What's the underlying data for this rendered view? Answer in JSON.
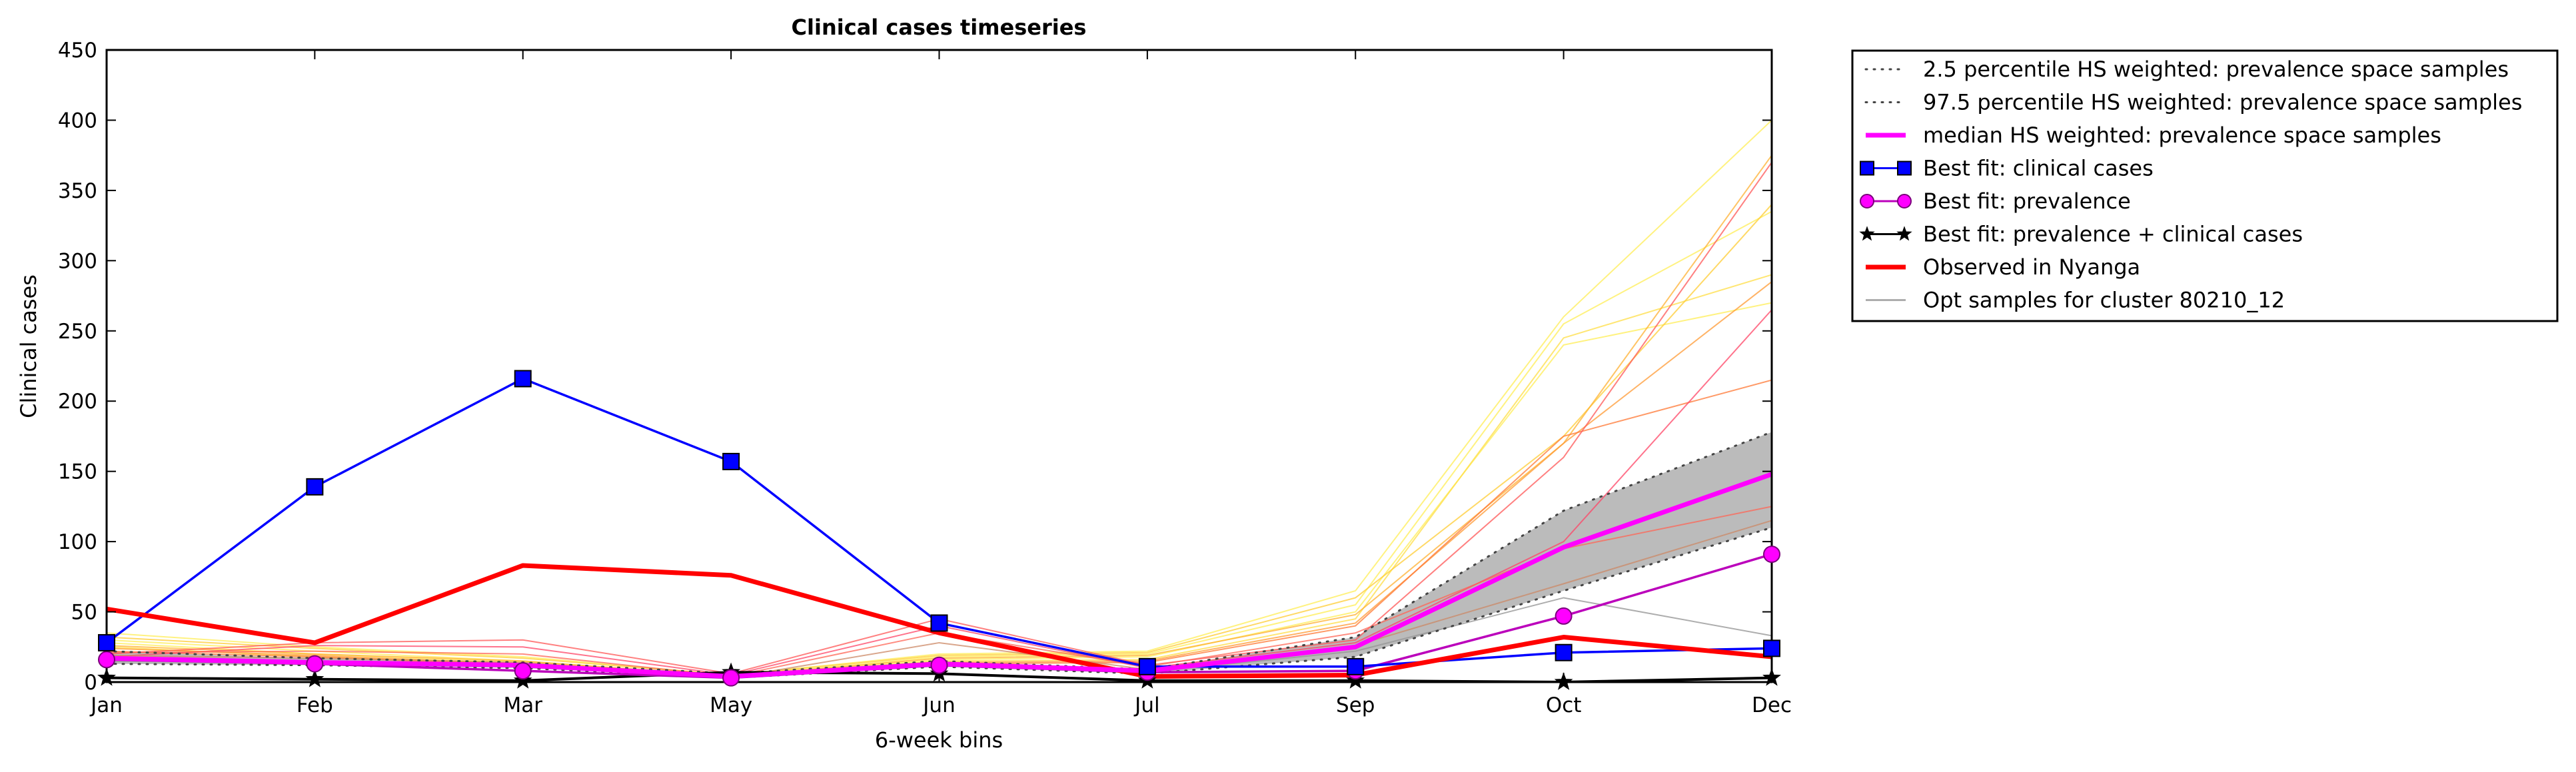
{
  "chart_data": {
    "type": "line",
    "title": "Clinical cases timeseries",
    "xlabel": "6-week bins",
    "ylabel": "Clinical cases",
    "ylim": [
      0,
      450
    ],
    "yticks": [
      0,
      50,
      100,
      150,
      200,
      250,
      300,
      350,
      400,
      450
    ],
    "categories": [
      "Jan",
      "Feb",
      "Mar",
      "May",
      "Jun",
      "Jul",
      "Sep",
      "Oct",
      "Dec"
    ],
    "grid": false,
    "legend_position": "outside-top-right",
    "band": {
      "lower": [
        13,
        12,
        10,
        3,
        11,
        6,
        18,
        65,
        110
      ],
      "upper": [
        22,
        17,
        14,
        6,
        15,
        9,
        32,
        122,
        178
      ],
      "color": "#bbbbbb"
    },
    "series": [
      {
        "name": "2.5 percentile HS weighted: prevalence space samples",
        "style": "dotted",
        "marker": "none",
        "color": "#444444",
        "values": [
          13,
          12,
          10,
          3,
          11,
          6,
          18,
          65,
          110
        ]
      },
      {
        "name": "97.5 percentile HS weighted: prevalence space samples",
        "style": "dotted",
        "marker": "none",
        "color": "#444444",
        "values": [
          22,
          17,
          14,
          6,
          15,
          9,
          32,
          122,
          178
        ]
      },
      {
        "name": "median HS weighted: prevalence space samples",
        "style": "solid",
        "marker": "none",
        "color": "#ff00ff",
        "values": [
          17,
          14,
          12,
          4,
          13,
          8,
          25,
          96,
          148
        ]
      },
      {
        "name": "Best fit: clinical cases",
        "style": "solid",
        "marker": "square",
        "color": "#0000ff",
        "values": [
          28,
          139,
          216,
          157,
          42,
          11,
          11,
          21,
          24
        ]
      },
      {
        "name": "Best fit: prevalence",
        "style": "solid",
        "marker": "circle",
        "color": "#ff00ff",
        "markerEdge": "#7a007a",
        "lineColor": "#bb00bb",
        "values": [
          16,
          13,
          8,
          3,
          12,
          7,
          8,
          47,
          91
        ]
      },
      {
        "name": "Best fit: prevalence + clinical cases",
        "style": "solid",
        "marker": "star",
        "color": "#000000",
        "values": [
          3,
          2,
          1,
          7,
          6,
          1,
          1,
          0,
          3
        ]
      },
      {
        "name": "Observed in Nyanga",
        "style": "solid",
        "marker": "none",
        "color": "#ff0000",
        "values": [
          52,
          28,
          83,
          76,
          35,
          4,
          5,
          32,
          18
        ]
      },
      {
        "name": "Opt samples for cluster 80210_12",
        "style": "solid",
        "marker": "none",
        "color": "#999999",
        "values": [
          15,
          13,
          11,
          4,
          12,
          7,
          22,
          60,
          33
        ]
      }
    ],
    "sample_lines": [
      {
        "color": "#ffee55",
        "values": [
          35,
          25,
          18,
          5,
          20,
          22,
          65,
          260,
          400
        ]
      },
      {
        "color": "#ffee55",
        "values": [
          30,
          22,
          15,
          4,
          18,
          20,
          55,
          255,
          335
        ]
      },
      {
        "color": "#ffee55",
        "values": [
          28,
          20,
          14,
          4,
          16,
          18,
          50,
          240,
          270
        ]
      },
      {
        "color": "#ffdd44",
        "values": [
          25,
          18,
          13,
          3,
          15,
          16,
          45,
          245,
          290
        ]
      },
      {
        "color": "#ffcc33",
        "values": [
          32,
          24,
          17,
          5,
          19,
          21,
          60,
          175,
          340
        ]
      },
      {
        "color": "#ffb030",
        "values": [
          26,
          20,
          15,
          4,
          17,
          19,
          48,
          170,
          375
        ]
      },
      {
        "color": "#ff9933",
        "values": [
          24,
          19,
          13,
          4,
          14,
          15,
          42,
          170,
          285
        ]
      },
      {
        "color": "#ff7733",
        "values": [
          22,
          18,
          12,
          4,
          13,
          14,
          40,
          175,
          215
        ]
      },
      {
        "color": "#ff5555",
        "values": [
          20,
          28,
          30,
          6,
          45,
          12,
          30,
          160,
          370
        ]
      },
      {
        "color": "#ff4466",
        "values": [
          18,
          26,
          25,
          5,
          40,
          10,
          28,
          100,
          265
        ]
      },
      {
        "color": "#ff6655",
        "values": [
          21,
          22,
          20,
          4,
          35,
          11,
          35,
          95,
          125
        ]
      },
      {
        "color": "#cc8866",
        "values": [
          19,
          17,
          14,
          3,
          28,
          9,
          26,
          70,
          115
        ]
      }
    ]
  }
}
